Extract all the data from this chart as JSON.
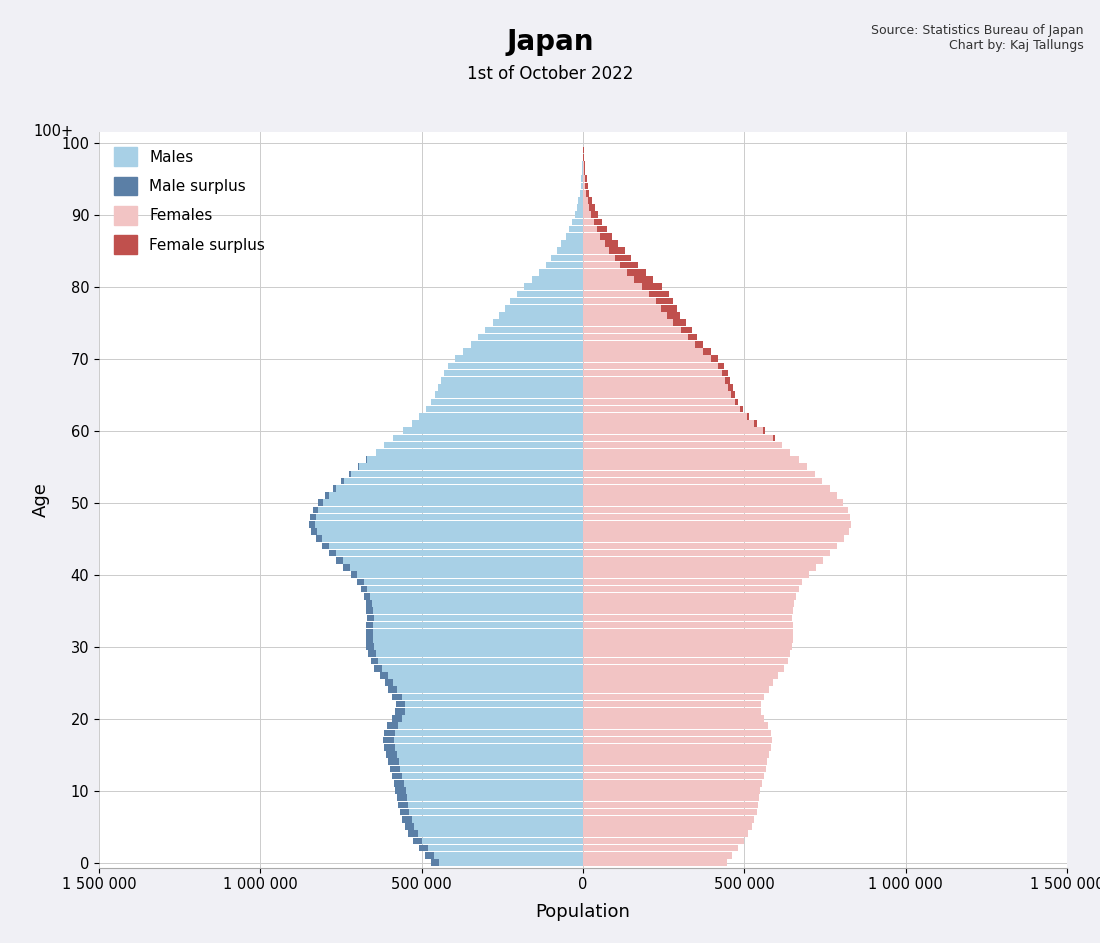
{
  "title": "Japan",
  "subtitle": "1st of October 2022",
  "source": "Source: Statistics Bureau of Japan\nChart by: Kaj Tallungs",
  "xlabel": "Population",
  "ylabel": "Age",
  "background_color": "#f0f0f5",
  "plot_background": "#ffffff",
  "male_color": "#a8d0e6",
  "male_surplus_color": "#5b7fa6",
  "female_color": "#f2c4c4",
  "female_surplus_color": "#c0504d",
  "xlim": 1500000,
  "ages": [
    0,
    1,
    2,
    3,
    4,
    5,
    6,
    7,
    8,
    9,
    10,
    11,
    12,
    13,
    14,
    15,
    16,
    17,
    18,
    19,
    20,
    21,
    22,
    23,
    24,
    25,
    26,
    27,
    28,
    29,
    30,
    31,
    32,
    33,
    34,
    35,
    36,
    37,
    38,
    39,
    40,
    41,
    42,
    43,
    44,
    45,
    46,
    47,
    48,
    49,
    50,
    51,
    52,
    53,
    54,
    55,
    56,
    57,
    58,
    59,
    60,
    61,
    62,
    63,
    64,
    65,
    66,
    67,
    68,
    69,
    70,
    71,
    72,
    73,
    74,
    75,
    76,
    77,
    78,
    79,
    80,
    81,
    82,
    83,
    84,
    85,
    86,
    87,
    88,
    89,
    90,
    91,
    92,
    93,
    94,
    95,
    96,
    97,
    98,
    99,
    100
  ],
  "males": [
    471000,
    489000,
    509000,
    528000,
    541000,
    553000,
    561000,
    568000,
    573000,
    577000,
    582000,
    587000,
    593000,
    598000,
    604000,
    611000,
    616000,
    621000,
    617000,
    606000,
    591000,
    582000,
    580000,
    591000,
    603000,
    614000,
    630000,
    647000,
    658000,
    666000,
    671000,
    673000,
    673000,
    672000,
    670000,
    671000,
    674000,
    680000,
    689000,
    701000,
    720000,
    744000,
    765000,
    787000,
    808000,
    829000,
    843000,
    848000,
    845000,
    837000,
    820000,
    799000,
    775000,
    750000,
    726000,
    698000,
    671000,
    643000,
    616000,
    590000,
    558000,
    531000,
    507000,
    487000,
    470000,
    458000,
    449000,
    441000,
    432000,
    418000,
    398000,
    372000,
    347000,
    326000,
    305000,
    280000,
    259000,
    241000,
    225000,
    205000,
    182000,
    157000,
    135000,
    115000,
    98000,
    82000,
    67000,
    54000,
    43000,
    34000,
    26000,
    19000,
    14000,
    10000,
    7000,
    5000,
    3000,
    2000,
    1000,
    1000,
    500
  ],
  "females": [
    447000,
    463000,
    481000,
    499000,
    512000,
    524000,
    531000,
    538000,
    542000,
    546000,
    550000,
    555000,
    561000,
    566000,
    571000,
    577000,
    582000,
    587000,
    584000,
    574000,
    561000,
    553000,
    551000,
    562000,
    576000,
    588000,
    604000,
    622000,
    634000,
    643000,
    649000,
    651000,
    651000,
    651000,
    649000,
    650000,
    653000,
    659000,
    668000,
    680000,
    699000,
    723000,
    745000,
    767000,
    788000,
    810000,
    825000,
    830000,
    828000,
    821000,
    806000,
    787000,
    765000,
    742000,
    719000,
    694000,
    668000,
    643000,
    618000,
    594000,
    564000,
    538000,
    516000,
    497000,
    481000,
    472000,
    464000,
    457000,
    449000,
    436000,
    419000,
    396000,
    373000,
    354000,
    337000,
    318000,
    302000,
    290000,
    280000,
    265000,
    244000,
    218000,
    194000,
    171000,
    150000,
    130000,
    110000,
    91000,
    73000,
    58000,
    46000,
    36000,
    27000,
    20000,
    15000,
    11000,
    7000,
    5000,
    3000,
    2000,
    1500
  ],
  "yticks": [
    0,
    10,
    20,
    30,
    40,
    50,
    60,
    70,
    80,
    90,
    100
  ],
  "xticks": [
    -1500000,
    -1000000,
    -500000,
    0,
    500000,
    1000000,
    1500000
  ],
  "xticklabels": [
    "1 500 000",
    "1 000 000",
    "500 000",
    "0",
    "500 000",
    "1 000 000",
    "1 500 000"
  ]
}
